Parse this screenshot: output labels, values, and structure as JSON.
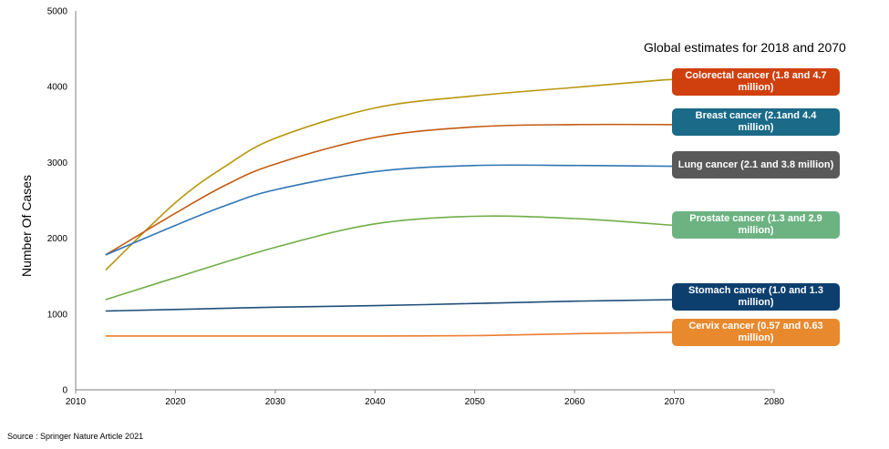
{
  "chart_data": {
    "type": "line",
    "title": "",
    "xlabel": "",
    "ylabel": "Number Of Cases",
    "xlim": [
      2010,
      2080
    ],
    "ylim": [
      0,
      5000
    ],
    "x_ticks": [
      "2010",
      "2020",
      "2030",
      "2040",
      "2050",
      "2060",
      "2070",
      "2080"
    ],
    "y_ticks": [
      "0",
      "1000",
      "2000",
      "3000",
      "4000",
      "5000"
    ],
    "grid": false,
    "legend_title": "Global estimates for 2018 and 2070",
    "series": [
      {
        "name": "Colorectal cancer (1.8 and 4.7 million)",
        "color": "#b8960c",
        "x": [
          2013,
          2020,
          2025,
          2030,
          2040,
          2050,
          2060,
          2069,
          2070
        ],
        "y": [
          1580,
          2470,
          2950,
          3320,
          3720,
          3880,
          3990,
          4090,
          4080
        ]
      },
      {
        "name": "Breast cancer (2.1and 4.4 million)",
        "color": "#c55a11",
        "x": [
          2013,
          2020,
          2025,
          2030,
          2040,
          2050,
          2060,
          2070
        ],
        "y": [
          1780,
          2330,
          2700,
          2980,
          3330,
          3470,
          3500,
          3500
        ]
      },
      {
        "name": "Lung cancer (2.1 and 3.8 million)",
        "color": "#2e75b6",
        "x": [
          2013,
          2020,
          2025,
          2030,
          2040,
          2050,
          2060,
          2070
        ],
        "y": [
          1780,
          2170,
          2430,
          2640,
          2880,
          2960,
          2960,
          2950
        ]
      },
      {
        "name": "Prostate cancer (1.3 and 2.9 million)",
        "color": "#70ad47",
        "x": [
          2013,
          2020,
          2030,
          2040,
          2050,
          2060,
          2070
        ],
        "y": [
          1190,
          1480,
          1880,
          2190,
          2290,
          2260,
          2170
        ]
      },
      {
        "name": "Stomach cancer (1.0 and 1.3 million)",
        "color": "#1f4e79",
        "x": [
          2013,
          2020,
          2030,
          2040,
          2050,
          2060,
          2070
        ],
        "y": [
          1040,
          1060,
          1090,
          1110,
          1140,
          1170,
          1190
        ]
      },
      {
        "name": "Cervix cancer (0.57 and 0.63 million)",
        "color": "#ed7d31",
        "x": [
          2013,
          2020,
          2030,
          2040,
          2050,
          2060,
          2070
        ],
        "y": [
          710,
          710,
          710,
          710,
          715,
          740,
          760
        ]
      }
    ]
  },
  "labels": [
    {
      "text": "Colorectal cancer (1.8 and 4.7 million)",
      "bg": "#d0400e"
    },
    {
      "text": "Breast cancer (2.1and 4.4 million)",
      "bg": "#1a6a88"
    },
    {
      "text": "Lung cancer (2.1 and 3.8 million)",
      "bg": "#595959"
    },
    {
      "text": "Prostate cancer (1.3 and 2.9 million)",
      "bg": "#6db382"
    },
    {
      "text": "Stomach cancer (1.0 and 1.3 million)",
      "bg": "#0d3f6e"
    },
    {
      "text": "Cervix cancer (0.57 and 0.63 million)",
      "bg": "#e8892e"
    }
  ],
  "source": "Source : Springer Nature  Article 2021"
}
